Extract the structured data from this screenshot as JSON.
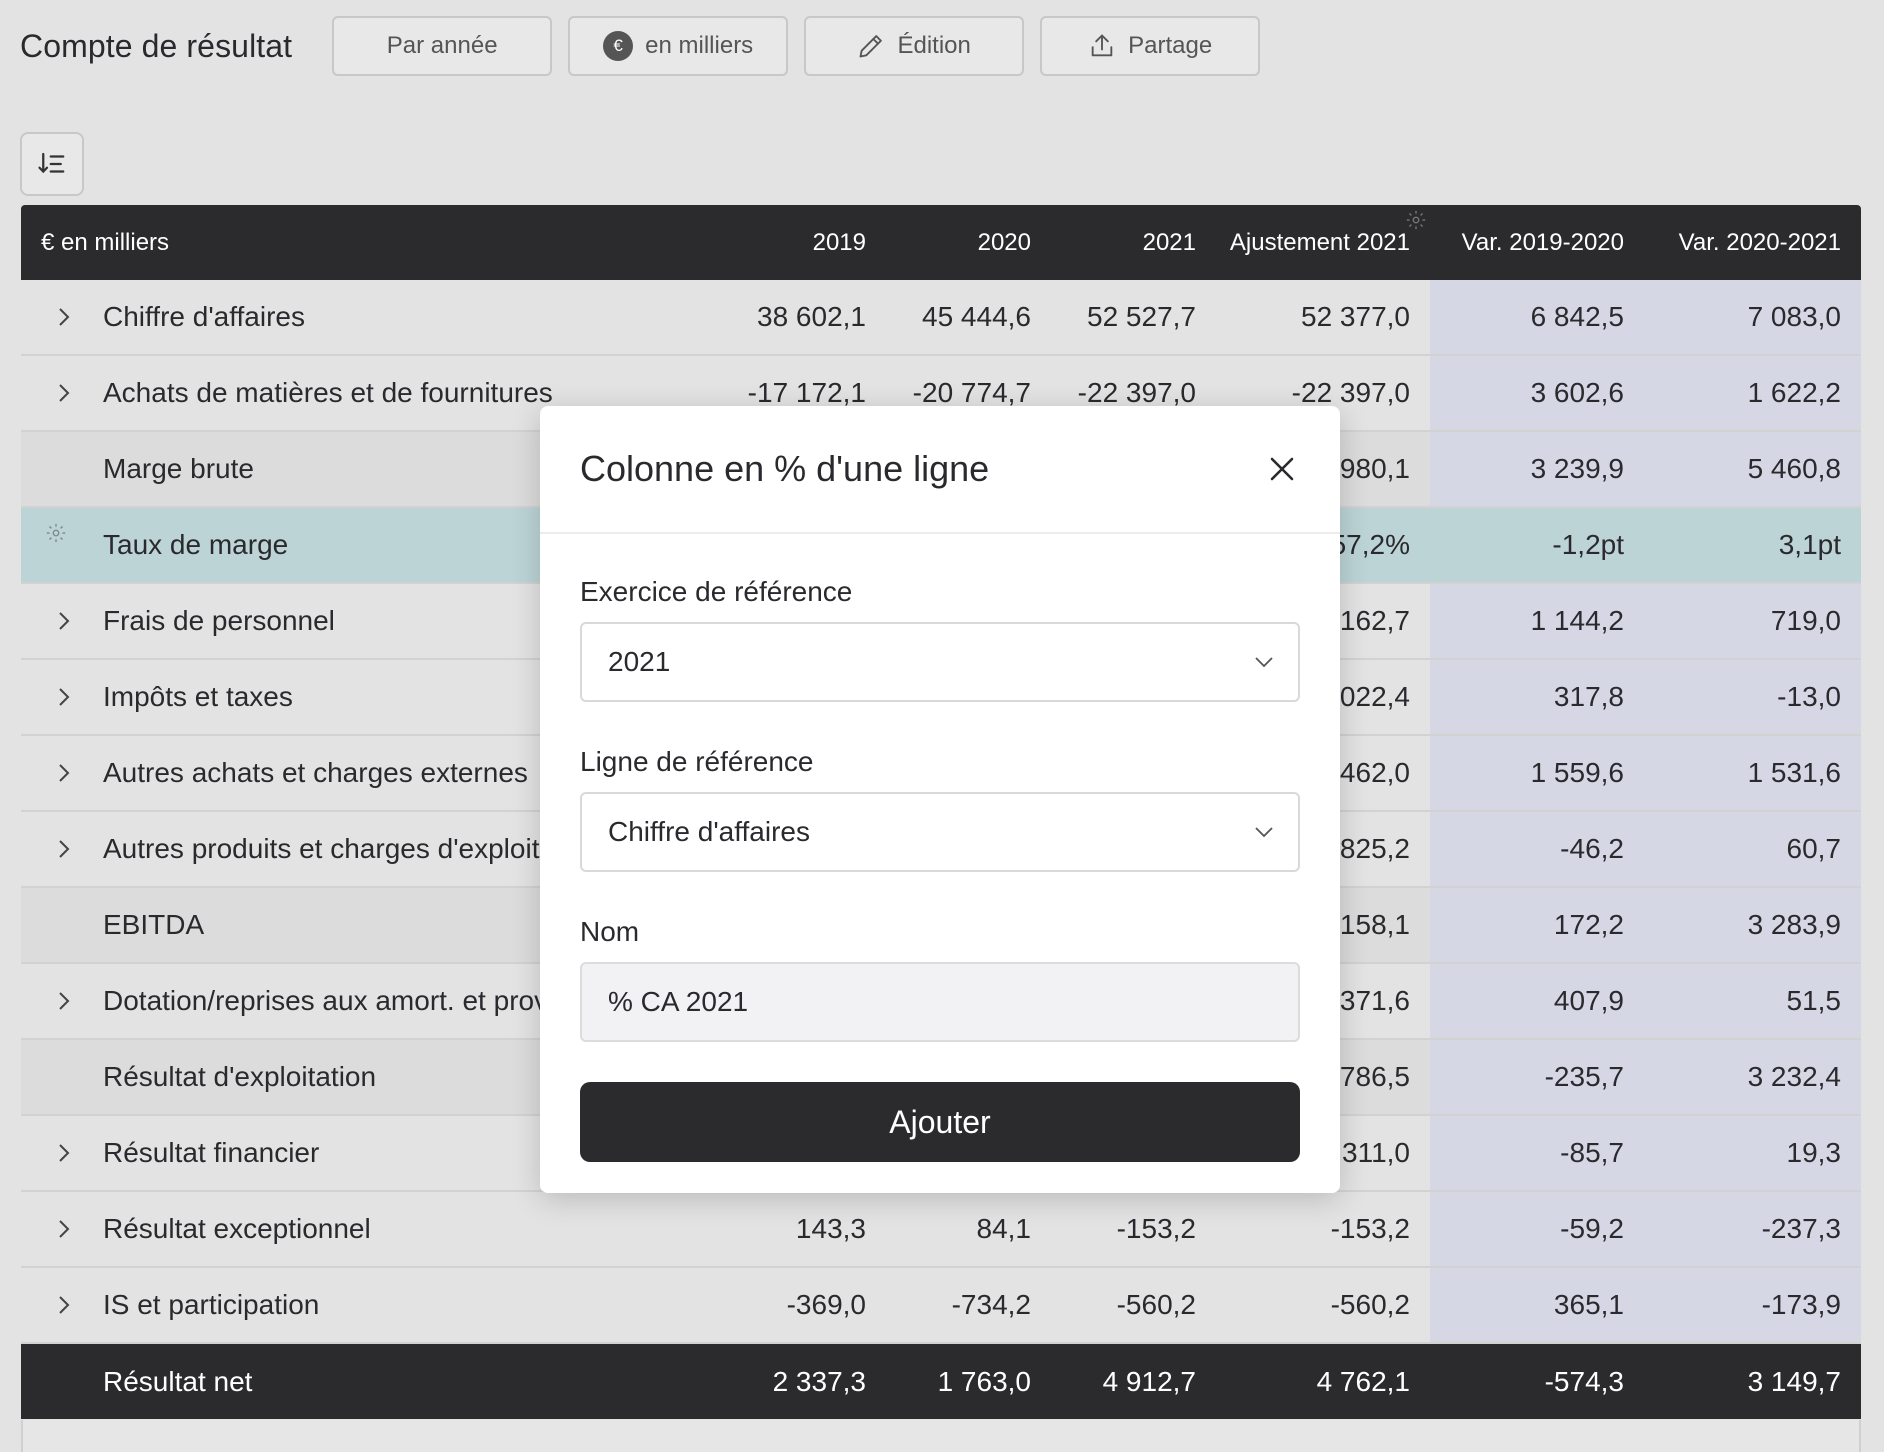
{
  "page": {
    "title": "Compte de résultat",
    "buttons": {
      "period": "Par année",
      "currency": "en milliers",
      "currency_symbol": "€",
      "edit": "Édition",
      "share": "Partage"
    }
  },
  "table": {
    "headers": {
      "label": "€ en milliers",
      "c2019": "2019",
      "c2020": "2020",
      "c2021": "2021",
      "adj": "Ajustement 2021",
      "v1": "Var. 2019-2020",
      "v2": "Var. 2020-2021"
    },
    "rows": [
      {
        "label": "Chiffre d'affaires",
        "v2019": "38 602,1",
        "v2020": "45 444,6",
        "v2021": "52 527,7",
        "adj": "52 377,0",
        "var1": "6 842,5",
        "var2": "7 083,0"
      },
      {
        "label": "Achats de matières et de fournitures",
        "v2019": "-17 172,1",
        "v2020": "-20 774,7",
        "v2021": "-22 397,0",
        "adj": "-22 397,0",
        "var1": "3 602,6",
        "var2": "1 622,2"
      },
      {
        "label": "Marge brute",
        "adj": "980,1",
        "var1": "3 239,9",
        "var2": "5 460,8"
      },
      {
        "label": "Taux de marge",
        "adj": "57,2%",
        "var1": "-1,2pt",
        "var2": "3,1pt"
      },
      {
        "label": "Frais de personnel",
        "adj": "162,7",
        "var1": "1 144,2",
        "var2": "719,0"
      },
      {
        "label": "Impôts et taxes",
        "adj": "022,4",
        "var1": "317,8",
        "var2": "-13,0"
      },
      {
        "label": "Autres achats et charges externes",
        "adj": "462,0",
        "var1": "1 559,6",
        "var2": "1 531,6"
      },
      {
        "label": "Autres produits et charges d'exploitation",
        "adj": "825,2",
        "var1": "-46,2",
        "var2": "60,7"
      },
      {
        "label": "EBITDA",
        "adj": "158,1",
        "var1": "172,2",
        "var2": "3 283,9"
      },
      {
        "label": "Dotation/reprises aux amort. et provisions",
        "adj": "371,6",
        "var1": "407,9",
        "var2": "51,5"
      },
      {
        "label": "Résultat d'exploitation",
        "adj": "786,5",
        "var1": "-235,7",
        "var2": "3 232,4"
      },
      {
        "label": "Résultat financier",
        "adj": "311,0",
        "var1": "-85,7",
        "var2": "19,3"
      },
      {
        "label": "Résultat exceptionnel",
        "v2019": "143,3",
        "v2020": "84,1",
        "v2021": "-153,2",
        "adj": "-153,2",
        "var1": "-59,2",
        "var2": "-237,3"
      },
      {
        "label": "IS et participation",
        "v2019": "-369,0",
        "v2020": "-734,2",
        "v2021": "-560,2",
        "adj": "-560,2",
        "var1": "365,1",
        "var2": "-173,9"
      },
      {
        "label": "Résultat net",
        "v2019": "2 337,3",
        "v2020": "1 763,0",
        "v2021": "4 912,7",
        "adj": "4 762,1",
        "var1": "-574,3",
        "var2": "3 149,7"
      }
    ]
  },
  "modal": {
    "title": "Colonne en % d'une ligne",
    "year_label": "Exercice de référence",
    "year_value": "2021",
    "line_label": "Ligne de référence",
    "line_value": "Chiffre d'affaires",
    "name_label": "Nom",
    "name_value": "% CA 2021",
    "submit": "Ajouter"
  },
  "colors": {
    "header_bg": "#2b2b2e",
    "highlight_row": "#bcd4d6",
    "variance_col": "#d5d7e4",
    "subtotal_row": "#dcdcdc"
  }
}
